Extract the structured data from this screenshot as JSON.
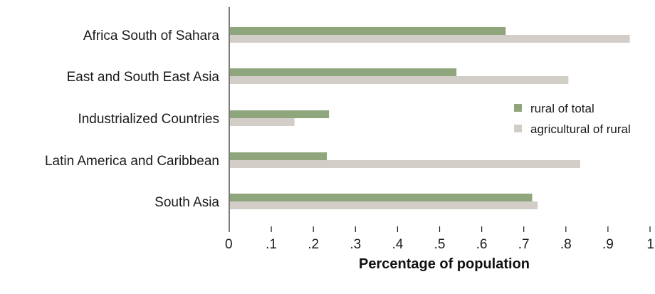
{
  "chart_data": {
    "type": "bar",
    "orientation": "horizontal",
    "categories": [
      "Africa South of Sahara",
      "East and South East Asia",
      "Industrialized Countries",
      "Latin America and Caribbean",
      "South Asia"
    ],
    "series": [
      {
        "name": "rural of total",
        "color": "#8fa57c",
        "values": [
          0.657,
          0.54,
          0.237,
          0.232,
          0.72
        ]
      },
      {
        "name": "agricultural of rural",
        "color": "#d3cdc8",
        "values": [
          0.952,
          0.806,
          0.155,
          0.834,
          0.733
        ]
      }
    ],
    "xlabel": "Percentage of population",
    "xlim": [
      0,
      1
    ],
    "xticks": [
      0,
      0.1,
      0.2,
      0.3,
      0.4,
      0.5,
      0.6,
      0.7,
      0.8,
      0.9,
      1
    ],
    "xtick_labels": [
      "0",
      ".1",
      ".2",
      ".3",
      ".4",
      ".5",
      ".6",
      ".7",
      ".8",
      ".9",
      "1"
    ],
    "grid": false,
    "legend_position": "right"
  }
}
